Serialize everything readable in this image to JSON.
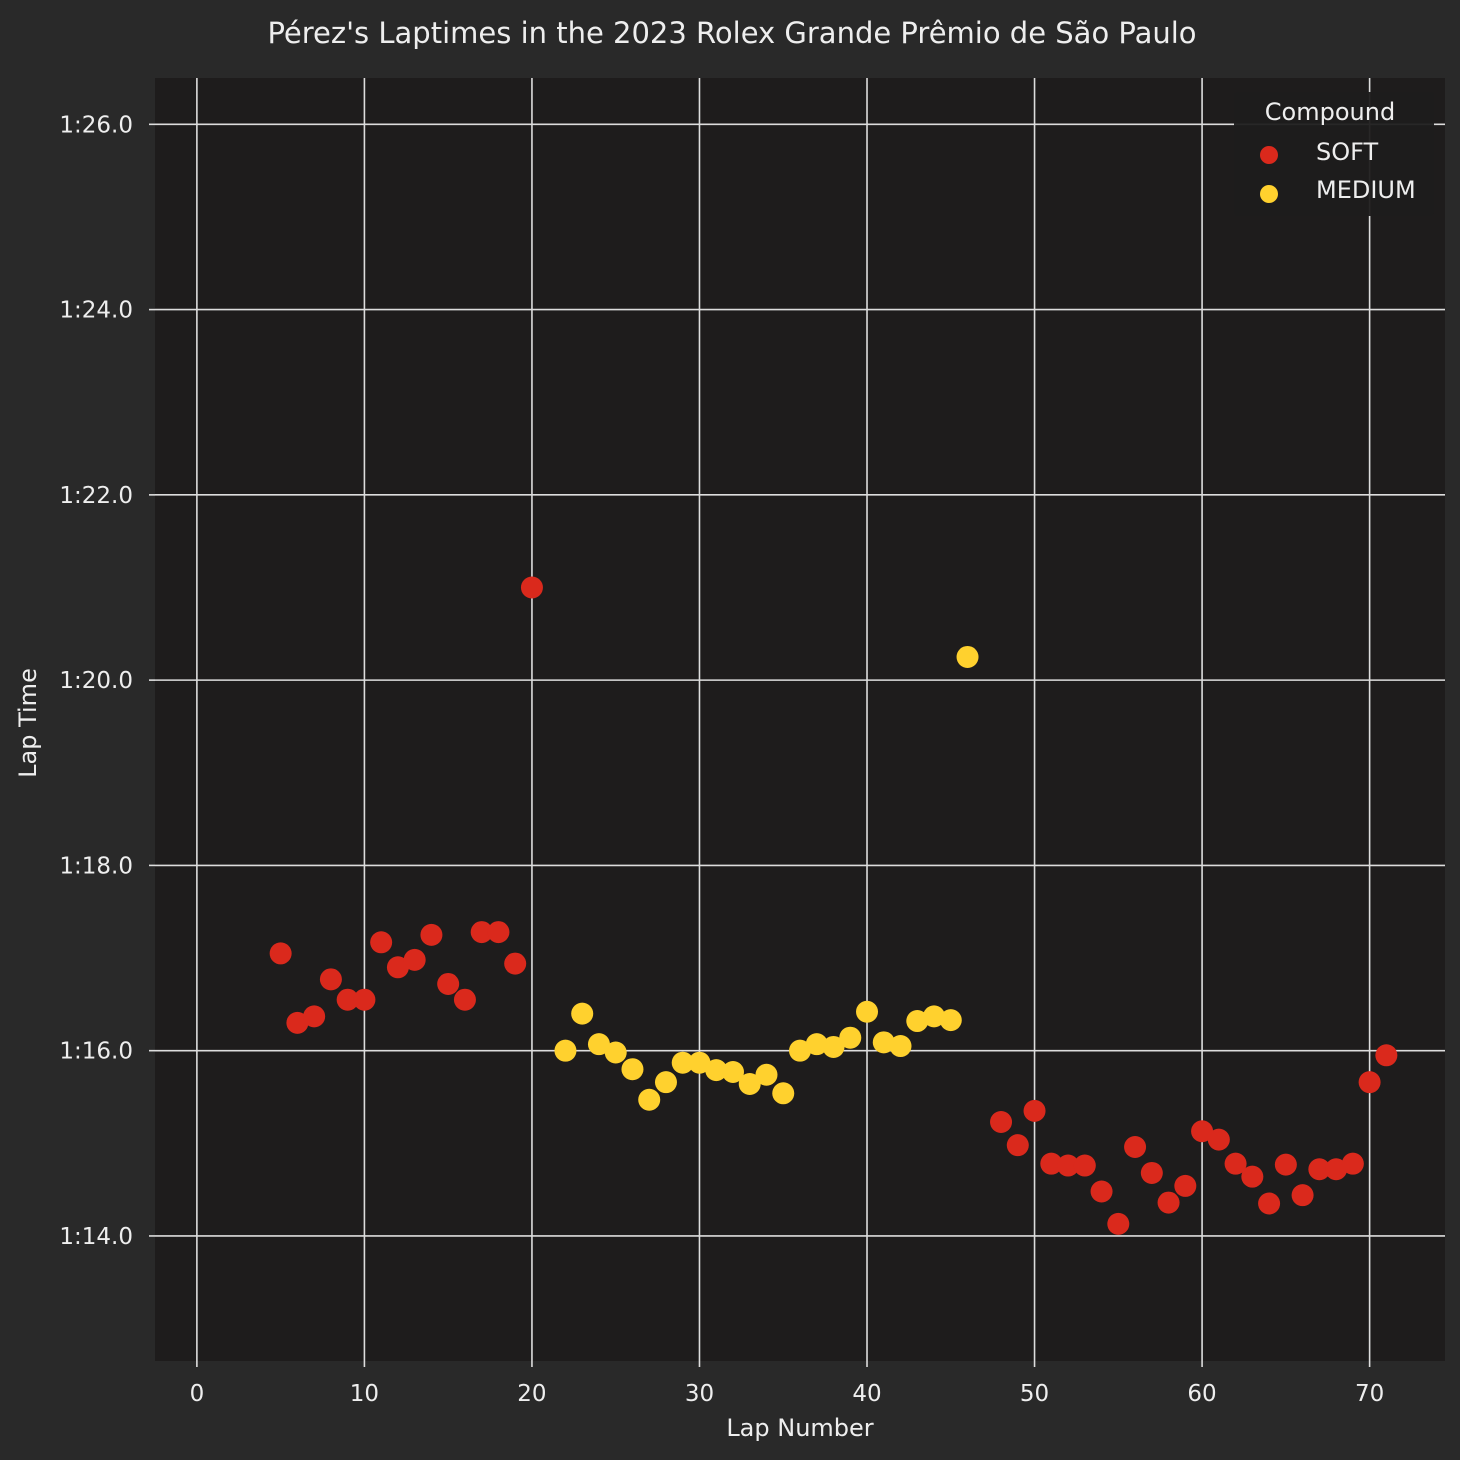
{
  "chart_data": {
    "type": "scatter",
    "title": "Pérez's Laptimes in the 2023 Rolex Grande Prêmio de São Paulo",
    "xlabel": "Lap Number",
    "ylabel": "Lap Time",
    "xlim": [
      -2.5,
      74.5
    ],
    "ylim": [
      72.65,
      86.5
    ],
    "x_ticks": [
      0,
      10,
      20,
      30,
      40,
      50,
      60,
      70
    ],
    "y_ticks": [
      {
        "value": 74,
        "label": "1:14.0"
      },
      {
        "value": 76,
        "label": "1:16.0"
      },
      {
        "value": 78,
        "label": "1:18.0"
      },
      {
        "value": 80,
        "label": "1:20.0"
      },
      {
        "value": 82,
        "label": "1:22.0"
      },
      {
        "value": 84,
        "label": "1:24.0"
      },
      {
        "value": 86,
        "label": "1:26.0"
      }
    ],
    "grid": true,
    "legend": {
      "title": "Compound",
      "position": "top-right"
    },
    "series": [
      {
        "name": "SOFT",
        "color": "#da291c",
        "points": [
          [
            5,
            77.05
          ],
          [
            6,
            76.3
          ],
          [
            7,
            76.37
          ],
          [
            8,
            76.77
          ],
          [
            9,
            76.55
          ],
          [
            10,
            76.55
          ],
          [
            11,
            77.17
          ],
          [
            12,
            76.9
          ],
          [
            13,
            76.98
          ],
          [
            14,
            77.25
          ],
          [
            15,
            76.72
          ],
          [
            16,
            76.55
          ],
          [
            17,
            77.28
          ],
          [
            18,
            77.28
          ],
          [
            19,
            76.94
          ],
          [
            20,
            81.0
          ],
          [
            48,
            75.23
          ],
          [
            49,
            74.98
          ],
          [
            50,
            75.35
          ],
          [
            51,
            74.78
          ],
          [
            52,
            74.76
          ],
          [
            53,
            74.76
          ],
          [
            54,
            74.48
          ],
          [
            55,
            74.13
          ],
          [
            56,
            74.96
          ],
          [
            57,
            74.68
          ],
          [
            58,
            74.36
          ],
          [
            59,
            74.54
          ],
          [
            60,
            75.13
          ],
          [
            61,
            75.04
          ],
          [
            62,
            74.78
          ],
          [
            63,
            74.64
          ],
          [
            64,
            74.35
          ],
          [
            65,
            74.77
          ],
          [
            66,
            74.44
          ],
          [
            67,
            74.72
          ],
          [
            68,
            74.72
          ],
          [
            69,
            74.78
          ],
          [
            70,
            75.66
          ],
          [
            71,
            75.95
          ]
        ]
      },
      {
        "name": "MEDIUM",
        "color": "#ffd12e",
        "points": [
          [
            22,
            76.0
          ],
          [
            23,
            76.4
          ],
          [
            24,
            76.07
          ],
          [
            25,
            75.98
          ],
          [
            26,
            75.8
          ],
          [
            27,
            75.47
          ],
          [
            28,
            75.66
          ],
          [
            29,
            75.87
          ],
          [
            30,
            75.87
          ],
          [
            31,
            75.79
          ],
          [
            32,
            75.77
          ],
          [
            33,
            75.64
          ],
          [
            34,
            75.74
          ],
          [
            35,
            75.54
          ],
          [
            36,
            76.0
          ],
          [
            37,
            76.07
          ],
          [
            38,
            76.04
          ],
          [
            39,
            76.14
          ],
          [
            40,
            76.42
          ],
          [
            41,
            76.09
          ],
          [
            42,
            76.05
          ],
          [
            43,
            76.32
          ],
          [
            44,
            76.37
          ],
          [
            45,
            76.33
          ],
          [
            46,
            80.25
          ]
        ]
      }
    ]
  },
  "colors": {
    "figure_background": "#292929",
    "plot_background": "#1e1c1c",
    "grid": "#dddddd",
    "text": "#eeeeee"
  }
}
